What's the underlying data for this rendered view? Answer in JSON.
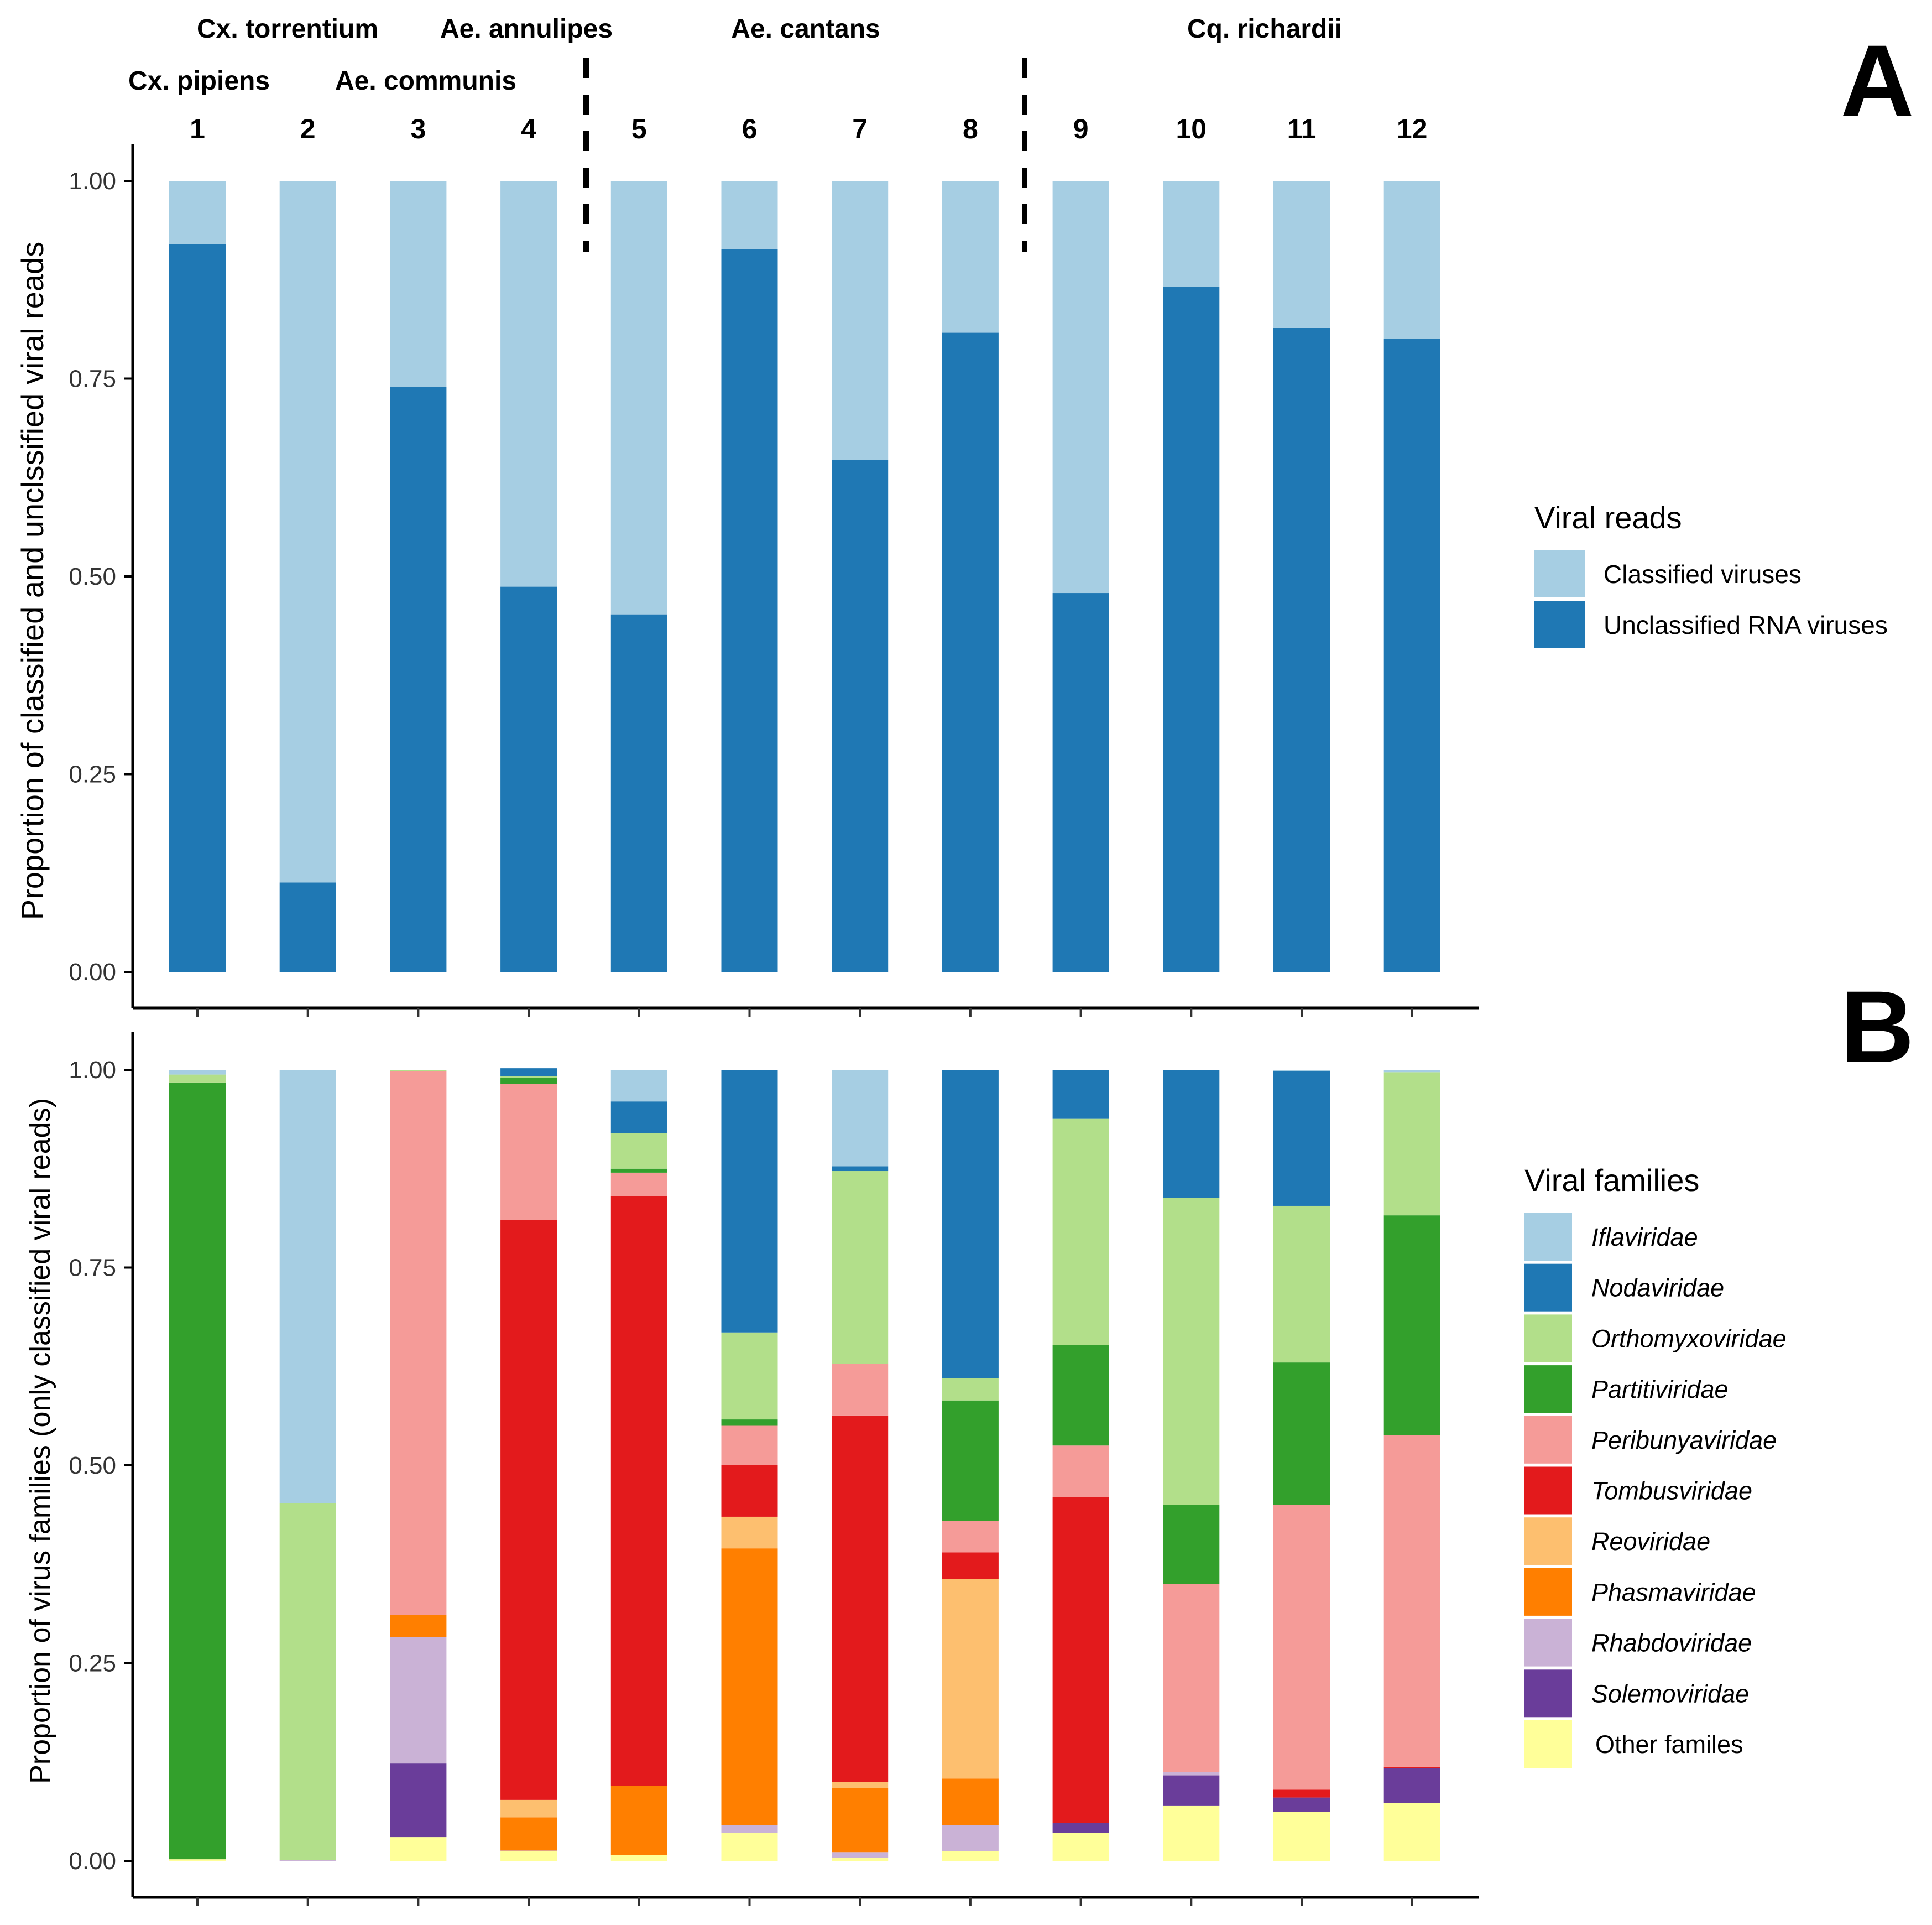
{
  "panel_labels": {
    "a": "A",
    "b": "B"
  },
  "sample_numbers": [
    "1",
    "2",
    "3",
    "4",
    "5",
    "6",
    "7",
    "8",
    "9",
    "10",
    "11",
    "12"
  ],
  "species": {
    "cx_pipiens": "Cx. pipiens",
    "cx_torrentium": "Cx. torrentium",
    "ae_communis": "Ae. communis",
    "ae_annulipes": "Ae. annulipes",
    "ae_cantans": "Ae. cantans",
    "cq_richardii": "Cq. richardii"
  },
  "chart_data": [
    {
      "id": "A",
      "type": "bar",
      "stacked": true,
      "categories": [
        "1",
        "2",
        "3",
        "4",
        "5",
        "6",
        "7",
        "8",
        "9",
        "10",
        "11",
        "12"
      ],
      "ylabel": "Proportion of classified and unclssified viral reads",
      "xlabel": "",
      "ylim": [
        0,
        1
      ],
      "yticks": [
        "0.00",
        "0.25",
        "0.50",
        "0.75",
        "1.00"
      ],
      "legend_title": "Viral reads",
      "legend_position": "right",
      "series": [
        {
          "name": "Unclassified RNA viruses",
          "color": "#1F78B4",
          "values": [
            0.92,
            0.113,
            0.74,
            0.487,
            0.452,
            0.914,
            0.647,
            0.808,
            0.479,
            0.866,
            0.814,
            0.8
          ]
        },
        {
          "name": "Classified viruses",
          "color": "#A6CEE3",
          "values": [
            0.08,
            0.887,
            0.26,
            0.513,
            0.548,
            0.086,
            0.353,
            0.192,
            0.521,
            0.134,
            0.186,
            0.2
          ]
        }
      ]
    },
    {
      "id": "B",
      "type": "bar",
      "stacked": true,
      "categories": [
        "1",
        "2",
        "3",
        "4",
        "5",
        "6",
        "7",
        "8",
        "9",
        "10",
        "11",
        "12"
      ],
      "ylabel": "Proportion of virus families (only classified viral reads)",
      "xlabel": "",
      "ylim": [
        0,
        1
      ],
      "yticks": [
        "0.00",
        "0.25",
        "0.50",
        "0.75",
        "1.00"
      ],
      "legend_title": "Viral families",
      "legend_position": "right",
      "legend_order": [
        "Iflaviridae",
        "Nodaviridae",
        "Orthomyxoviridae",
        "Partitiviridae",
        "Peribunyaviridae",
        "Tombusviridae",
        "Reoviridae",
        "Phasmaviridae",
        "Rhabdoviridae",
        "Solemoviridae",
        "Other familes"
      ],
      "series": [
        {
          "name": "Other familes",
          "color": "#FFFF99",
          "italic": false,
          "values": [
            0.002,
            0,
            0.03,
            0.012,
            0.007,
            0.035,
            0.004,
            0.012,
            0.035,
            0.07,
            0.062,
            0.073
          ]
        },
        {
          "name": "Solemoviridae",
          "color": "#6A3D9A",
          "italic": true,
          "values": [
            0,
            0,
            0.093,
            0,
            0,
            0,
            0,
            0,
            0.013,
            0.038,
            0.018,
            0.044
          ]
        },
        {
          "name": "Rhabdoviridae",
          "color": "#CAB2D6",
          "italic": true,
          "values": [
            0,
            0.001,
            0.16,
            0.001,
            0,
            0.01,
            0.007,
            0.033,
            0,
            0.004,
            0,
            0
          ]
        },
        {
          "name": "Phasmaviridae",
          "color": "#FF7F00",
          "italic": true,
          "values": [
            0,
            0,
            0.028,
            0.042,
            0.088,
            0.35,
            0.081,
            0.059,
            0,
            0,
            0,
            0
          ]
        },
        {
          "name": "Reoviridae",
          "color": "#FDBF6F",
          "italic": true,
          "values": [
            0,
            0,
            0,
            0.022,
            0,
            0.04,
            0.008,
            0.252,
            0,
            0,
            0,
            0
          ]
        },
        {
          "name": "Tombusviridae",
          "color": "#E31A1C",
          "italic": true,
          "values": [
            0,
            0,
            0,
            0.733,
            0.745,
            0.065,
            0.463,
            0.034,
            0.412,
            0,
            0.01,
            0.002
          ]
        },
        {
          "name": "Peribunyaviridae",
          "color": "#F59B98",
          "italic": true,
          "values": [
            0,
            0,
            0.687,
            0.172,
            0.03,
            0.05,
            0.065,
            0.04,
            0.065,
            0.238,
            0.36,
            0.419
          ]
        },
        {
          "name": "Partitiviridae",
          "color": "#33A02C",
          "italic": true,
          "values": [
            0.982,
            0,
            0,
            0.008,
            0.005,
            0.008,
            0,
            0.152,
            0.127,
            0.1,
            0.18,
            0.278
          ]
        },
        {
          "name": "Orthomyxoviridae",
          "color": "#B2DF8A",
          "italic": true,
          "values": [
            0.01,
            0.451,
            0.002,
            0.002,
            0.045,
            0.11,
            0.244,
            0.028,
            0.286,
            0.388,
            0.198,
            0.181
          ]
        },
        {
          "name": "Nodaviridae",
          "color": "#1F78B4",
          "italic": true,
          "values": [
            0,
            0,
            0,
            0.01,
            0.04,
            0.332,
            0.006,
            0.39,
            0.062,
            0.162,
            0.17,
            0
          ]
        },
        {
          "name": "Iflaviridae",
          "color": "#A6CEE3",
          "italic": true,
          "values": [
            0.006,
            0.548,
            0,
            0,
            0.04,
            0,
            0.122,
            0,
            0,
            0,
            0.002,
            0.003
          ]
        }
      ]
    }
  ]
}
